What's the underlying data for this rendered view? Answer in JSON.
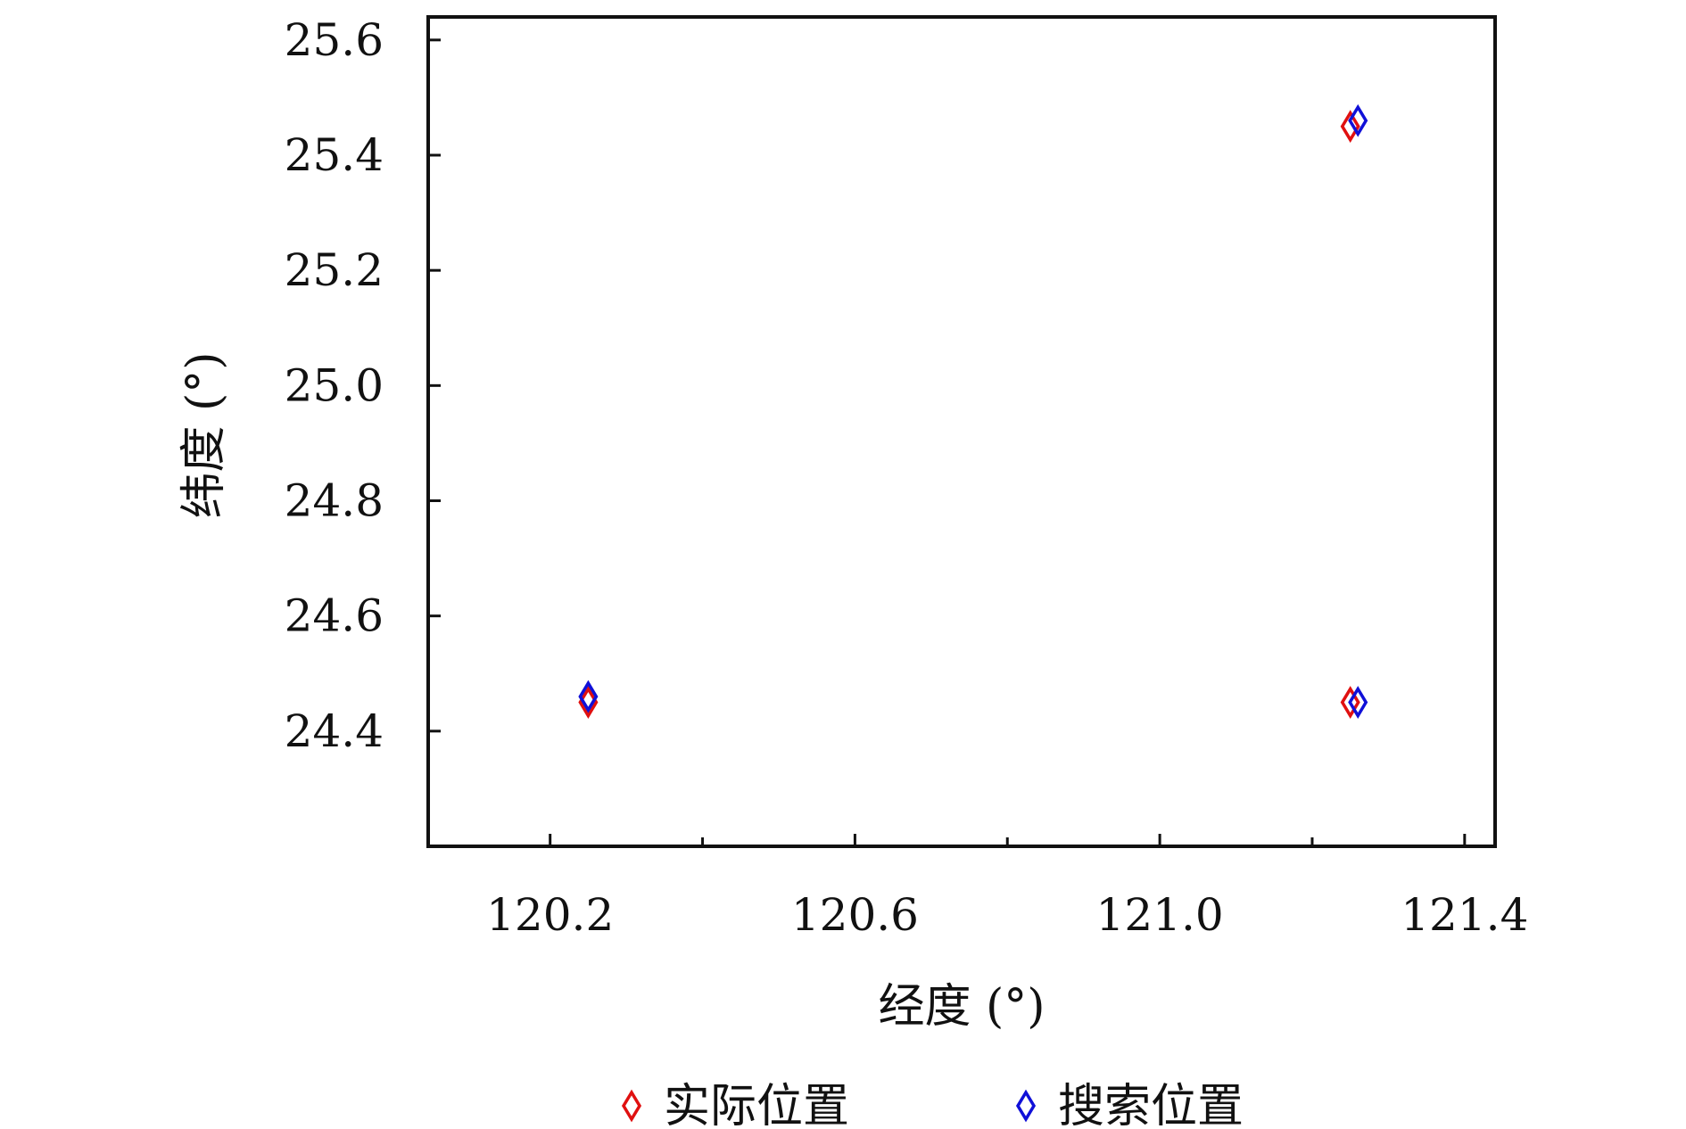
{
  "chart_data": {
    "type": "scatter",
    "title": "",
    "xlabel": "经度 (°)",
    "ylabel": "纬度 (°)",
    "xlim": [
      120.04,
      121.44
    ],
    "ylim": [
      24.2,
      25.64
    ],
    "xticks_major": [
      120.2,
      120.6,
      121.0,
      121.4
    ],
    "xtick_labels": [
      "120.2",
      "120.6",
      "121.0",
      "121.4"
    ],
    "xticks_minor": [
      120.4,
      120.8,
      121.2
    ],
    "yticks": [
      24.4,
      24.6,
      24.8,
      25.0,
      25.2,
      25.4,
      25.6
    ],
    "ytick_labels": [
      "24.4",
      "24.6",
      "24.8",
      "25.0",
      "25.2",
      "25.4",
      "25.6"
    ],
    "grid": false,
    "legend_position": "bottom-center",
    "marker": "diamond-open",
    "series": [
      {
        "name": "实际位置",
        "color": "#e01010",
        "points": [
          {
            "x": 120.25,
            "y": 24.45
          },
          {
            "x": 121.25,
            "y": 25.45
          },
          {
            "x": 121.25,
            "y": 24.45
          }
        ]
      },
      {
        "name": "搜索位置",
        "color": "#1010d8",
        "points": [
          {
            "x": 120.25,
            "y": 24.46
          },
          {
            "x": 121.26,
            "y": 25.46
          },
          {
            "x": 121.26,
            "y": 24.45
          }
        ]
      }
    ]
  }
}
